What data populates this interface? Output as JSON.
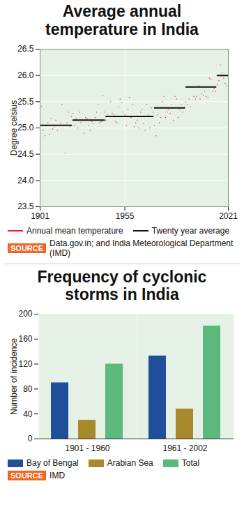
{
  "chart_data": [
    {
      "type": "line",
      "title": "Average annual temperature in India",
      "y_label": "Degree celsius",
      "source_tag": "SOURCE",
      "source": "Data.gov.in; and India Meteorological Department (IMD)",
      "xlim": [
        1901,
        2021
      ],
      "xticks": [
        1901,
        1955,
        2021
      ],
      "ylim": [
        23.5,
        26.5
      ],
      "yticks": [
        23.5,
        {
          "value": 24,
          "label": "24.0"
        },
        24.5,
        {
          "value": 25,
          "label": "25.0"
        },
        25.5,
        {
          "value": 26,
          "label": "26.0"
        },
        26.5
      ],
      "grid": true,
      "x": [
        1901,
        1902,
        1903,
        1904,
        1905,
        1906,
        1907,
        1908,
        1909,
        1910,
        1911,
        1912,
        1913,
        1914,
        1915,
        1916,
        1917,
        1918,
        1919,
        1920,
        1921,
        1922,
        1923,
        1924,
        1925,
        1926,
        1927,
        1928,
        1929,
        1930,
        1931,
        1932,
        1933,
        1934,
        1935,
        1936,
        1937,
        1938,
        1939,
        1940,
        1941,
        1942,
        1943,
        1944,
        1945,
        1946,
        1947,
        1948,
        1949,
        1950,
        1951,
        1952,
        1953,
        1954,
        1955,
        1956,
        1957,
        1958,
        1959,
        1960,
        1961,
        1962,
        1963,
        1964,
        1965,
        1966,
        1967,
        1968,
        1969,
        1970,
        1971,
        1972,
        1973,
        1974,
        1975,
        1976,
        1977,
        1978,
        1979,
        1980,
        1981,
        1982,
        1983,
        1984,
        1985,
        1986,
        1987,
        1988,
        1989,
        1990,
        1991,
        1992,
        1993,
        1994,
        1995,
        1996,
        1997,
        1998,
        1999,
        2000,
        2001,
        2002,
        2003,
        2004,
        2005,
        2006,
        2007,
        2008,
        2009,
        2010,
        2011,
        2012,
        2013,
        2014,
        2015,
        2016,
        2017,
        2018,
        2019,
        2020,
        2021
      ],
      "series": [
        {
          "name": "Annual mean temperature",
          "color": "#e8202a",
          "values": [
            25.42,
            25.41,
            24.95,
            24.85,
            25.05,
            25.1,
            24.88,
            25.18,
            24.98,
            25.02,
            25.15,
            24.95,
            25.05,
            25.08,
            25.45,
            25.05,
            24.52,
            25.1,
            25.3,
            25.02,
            25.22,
            25.28,
            25.05,
            25.18,
            25.0,
            25.3,
            25.1,
            25.15,
            24.9,
            25.2,
            25.18,
            25.05,
            24.95,
            25.12,
            25.08,
            25.2,
            25.3,
            25.45,
            25.1,
            25.12,
            25.62,
            25.3,
            25.15,
            25.25,
            25.22,
            25.5,
            25.28,
            25.25,
            25.12,
            25.1,
            25.4,
            25.55,
            25.48,
            25.3,
            25.25,
            25.05,
            25.35,
            25.58,
            25.2,
            25.45,
            25.02,
            25.1,
            25.15,
            25.0,
            25.3,
            25.35,
            25.08,
            24.95,
            25.45,
            25.25,
            25.0,
            25.38,
            25.3,
            25.05,
            24.85,
            25.25,
            25.1,
            25.2,
            25.5,
            25.6,
            25.2,
            25.3,
            25.35,
            25.28,
            25.45,
            25.15,
            25.6,
            25.55,
            25.2,
            25.35,
            25.45,
            25.3,
            25.4,
            25.5,
            25.45,
            25.55,
            25.4,
            25.78,
            25.6,
            25.55,
            25.6,
            25.8,
            25.55,
            25.65,
            25.62,
            25.7,
            25.6,
            25.58,
            25.95,
            25.92,
            25.7,
            25.75,
            25.7,
            25.82,
            25.9,
            26.2,
            26.05,
            25.95,
            25.85,
            25.8,
            26.0
          ]
        },
        {
          "name": "Twenty year average",
          "color": "#111111",
          "values": [
            25.05,
            25.05,
            25.05,
            25.05,
            25.05,
            25.05,
            25.05,
            25.05,
            25.05,
            25.05,
            25.05,
            25.05,
            25.05,
            25.05,
            25.05,
            25.05,
            25.05,
            25.05,
            25.05,
            25.05,
            25.05,
            25.15,
            25.15,
            25.15,
            25.15,
            25.15,
            25.15,
            25.15,
            25.15,
            25.15,
            25.15,
            25.15,
            25.15,
            25.15,
            25.15,
            25.15,
            25.15,
            25.15,
            25.15,
            25.15,
            25.15,
            25.15,
            25.22,
            25.22,
            25.22,
            25.22,
            25.22,
            25.22,
            25.22,
            25.22,
            25.22,
            25.22,
            25.22,
            25.22,
            25.22,
            25.22,
            25.22,
            25.22,
            25.22,
            25.22,
            25.22,
            25.22,
            25.22,
            25.22,
            25.22,
            25.22,
            25.22,
            25.22,
            25.22,
            25.22,
            25.22,
            25.22,
            25.22,
            25.38,
            25.38,
            25.38,
            25.38,
            25.38,
            25.38,
            25.38,
            25.38,
            25.38,
            25.38,
            25.38,
            25.38,
            25.38,
            25.38,
            25.38,
            25.38,
            25.38,
            25.38,
            25.38,
            25.38,
            25.78,
            25.78,
            25.78,
            25.78,
            25.78,
            25.78,
            25.78,
            25.78,
            25.78,
            25.78,
            25.78,
            25.78,
            25.78,
            25.78,
            25.78,
            25.78,
            25.78,
            25.78,
            25.78,
            25.78,
            26.0,
            26.0,
            26.0,
            26.0,
            26.0,
            26.0,
            26.0,
            26.0
          ]
        }
      ]
    },
    {
      "type": "bar",
      "title": "Frequency of cyclonic storms in India",
      "y_label": "Number of incidence",
      "source_tag": "SOURCE",
      "source": "IMD",
      "categories": [
        "1901 - 1960",
        "1961 - 2002"
      ],
      "ylim": [
        0,
        200
      ],
      "yticks": [
        0,
        40,
        80,
        120,
        160,
        200
      ],
      "grid": false,
      "series": [
        {
          "name": "Bay of Bengal",
          "color": "#1f4f9a",
          "values": [
            90,
            133
          ]
        },
        {
          "name": "Arabian Sea",
          "color": "#a88a2c",
          "values": [
            30,
            48
          ]
        },
        {
          "name": "Total",
          "color": "#5cb87c",
          "values": [
            120,
            181
          ]
        }
      ]
    }
  ]
}
